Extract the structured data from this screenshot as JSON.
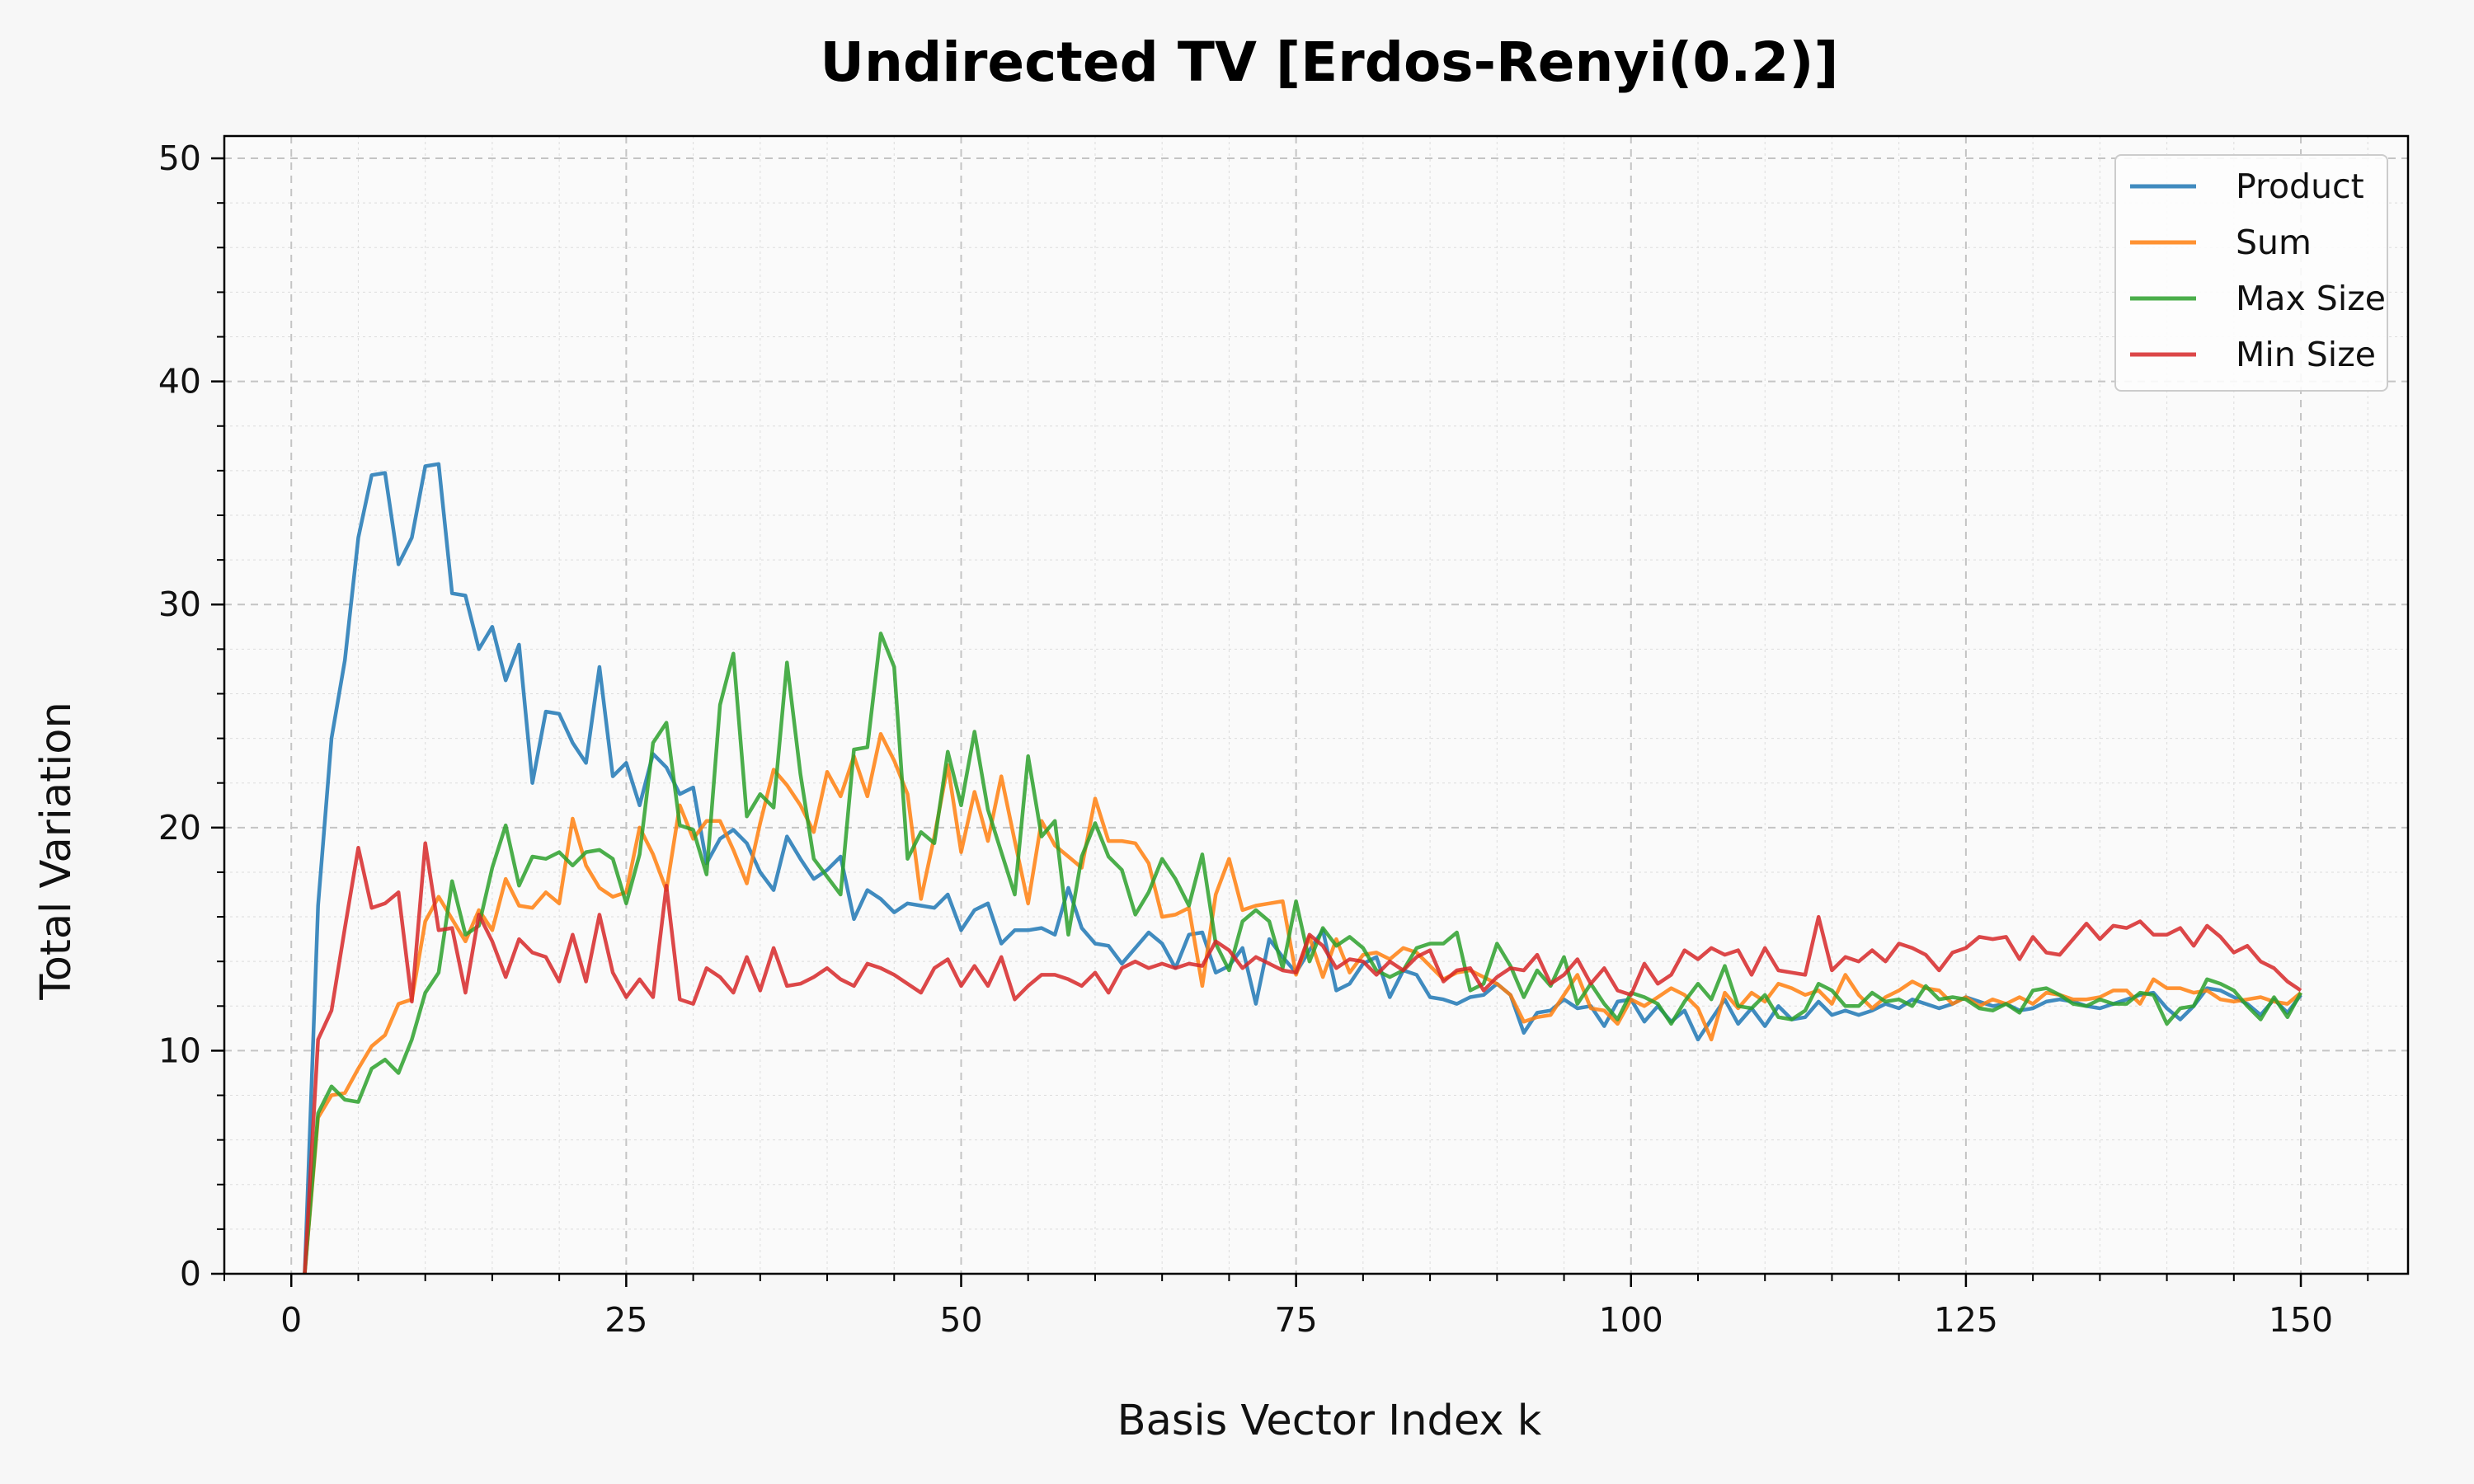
{
  "chart_data": {
    "type": "line",
    "title": "Undirected TV [Erdos-Renyi(0.2)]",
    "xlabel": "Basis Vector Index k",
    "ylabel": "Total Variation",
    "xlim": [
      -5,
      158
    ],
    "ylim": [
      0,
      51
    ],
    "xticks": [
      0,
      25,
      50,
      75,
      100,
      125,
      150
    ],
    "yticks": [
      0,
      10,
      20,
      30,
      40,
      50
    ],
    "grid": true,
    "legend_position": "top-right",
    "series": [
      {
        "name": "Product",
        "color": "#1f77b4",
        "x": [
          1,
          2,
          3,
          4,
          5,
          6,
          7,
          8,
          9,
          10,
          11,
          12,
          13,
          14,
          15,
          16,
          17,
          18,
          19,
          20,
          21,
          22,
          23,
          24,
          25,
          26,
          27,
          28,
          29,
          30,
          31,
          32,
          33,
          34,
          35,
          36,
          37,
          38,
          39,
          40,
          41,
          42,
          43,
          44,
          45,
          46,
          47,
          48,
          49,
          50,
          51,
          52,
          53,
          54,
          55,
          56,
          57,
          58,
          59,
          60,
          61,
          62,
          63,
          64,
          65,
          66,
          67,
          68,
          69,
          70,
          71,
          72,
          73,
          74,
          75,
          76,
          77,
          78,
          79,
          80,
          81,
          82,
          83,
          84,
          85,
          86,
          87,
          88,
          89,
          90,
          91,
          92,
          93,
          94,
          95,
          96,
          97,
          98,
          99,
          100,
          101,
          102,
          103,
          104,
          105,
          106,
          107,
          108,
          109,
          110,
          111,
          112,
          113,
          114,
          115,
          116,
          117,
          118,
          119,
          120,
          121,
          122,
          123,
          124,
          125,
          126,
          127,
          128,
          129,
          130,
          131,
          132,
          133,
          134,
          135,
          136,
          137,
          138,
          139,
          140,
          141,
          142,
          143,
          144,
          145,
          146,
          147,
          148,
          149,
          150
        ],
        "values": [
          0,
          16.5,
          24,
          27.5,
          33,
          35.8,
          35.9,
          31.8,
          33,
          36.2,
          36.3,
          30.5,
          30.4,
          28,
          29,
          26.6,
          28.2,
          22,
          25.2,
          25.1,
          23.8,
          22.9,
          27.2,
          22.3,
          22.9,
          21,
          23.3,
          22.7,
          21.5,
          21.8,
          18.4,
          19.5,
          19.9,
          19.3,
          18,
          17.2,
          19.6,
          18.6,
          17.7,
          18.1,
          18.7,
          15.9,
          17.2,
          16.8,
          16.2,
          16.6,
          16.5,
          16.4,
          17,
          15.4,
          16.3,
          16.6,
          14.8,
          15.4,
          15.4,
          15.5,
          15.2,
          17.3,
          15.5,
          14.8,
          14.7,
          13.9,
          14.6,
          15.3,
          14.8,
          13.7,
          15.2,
          15.3,
          13.5,
          13.8,
          14.6,
          12.1,
          15,
          14.2,
          13.5,
          14.5,
          15.4,
          12.7,
          13,
          13.9,
          14.2,
          12.4,
          13.6,
          13.4,
          12.4,
          12.3,
          12.1,
          12.4,
          12.5,
          13,
          12.5,
          10.8,
          11.7,
          11.8,
          12.3,
          11.9,
          12,
          11.1,
          12.2,
          12.3,
          11.3,
          12,
          11.3,
          11.8,
          10.5,
          11.4,
          12.3,
          11.2,
          11.9,
          11.1,
          12,
          11.4,
          11.5,
          12.2,
          11.6,
          11.8,
          11.6,
          11.8,
          12.1,
          11.9,
          12.3,
          12.1,
          11.9,
          12.1,
          12.4,
          12.2,
          12,
          12.1,
          11.8,
          11.9,
          12.2,
          12.3,
          12.2,
          12,
          11.9,
          12.1,
          12.3,
          12.5,
          12.6,
          11.9,
          11.4,
          12,
          12.8,
          12.7,
          12.4,
          12.1,
          11.6,
          12.3,
          11.7,
          12.5
        ]
      },
      {
        "name": "Sum",
        "color": "#ff7f0e",
        "x": [
          1,
          2,
          3,
          4,
          5,
          6,
          7,
          8,
          9,
          10,
          11,
          12,
          13,
          14,
          15,
          16,
          17,
          18,
          19,
          20,
          21,
          22,
          23,
          24,
          25,
          26,
          27,
          28,
          29,
          30,
          31,
          32,
          33,
          34,
          35,
          36,
          37,
          38,
          39,
          40,
          41,
          42,
          43,
          44,
          45,
          46,
          47,
          48,
          49,
          50,
          51,
          52,
          53,
          54,
          55,
          56,
          57,
          58,
          59,
          60,
          61,
          62,
          63,
          64,
          65,
          66,
          67,
          68,
          69,
          70,
          71,
          72,
          73,
          74,
          75,
          76,
          77,
          78,
          79,
          80,
          81,
          82,
          83,
          84,
          85,
          86,
          87,
          88,
          89,
          90,
          91,
          92,
          93,
          94,
          95,
          96,
          97,
          98,
          99,
          100,
          101,
          102,
          103,
          104,
          105,
          106,
          107,
          108,
          109,
          110,
          111,
          112,
          113,
          114,
          115,
          116,
          117,
          118,
          119,
          120,
          121,
          122,
          123,
          124,
          125,
          126,
          127,
          128,
          129,
          130,
          131,
          132,
          133,
          134,
          135,
          136,
          137,
          138,
          139,
          140,
          141,
          142,
          143,
          144,
          145,
          146,
          147,
          148,
          149,
          150
        ],
        "values": [
          0,
          7,
          8,
          8.1,
          9.2,
          10.2,
          10.7,
          12.1,
          12.3,
          15.8,
          16.9,
          15.9,
          14.9,
          16.3,
          15.4,
          17.7,
          16.5,
          16.4,
          17.1,
          16.6,
          20.4,
          18.3,
          17.3,
          16.9,
          17.1,
          20,
          18.8,
          17.2,
          21,
          19.5,
          20.3,
          20.3,
          19,
          17.5,
          20.2,
          22.6,
          21.9,
          21,
          19.8,
          22.5,
          21.4,
          23.2,
          21.4,
          24.2,
          23,
          21.5,
          16.8,
          19.6,
          22.8,
          18.9,
          21.6,
          19.4,
          22.3,
          19.4,
          16.6,
          20.3,
          19.2,
          18.7,
          18.2,
          21.3,
          19.4,
          19.4,
          19.3,
          18.4,
          16,
          16.1,
          16.4,
          12.9,
          17,
          18.6,
          16.3,
          16.5,
          16.6,
          16.7,
          13.4,
          15.1,
          13.3,
          15,
          13.5,
          14.3,
          14.4,
          14.1,
          14.6,
          14.4,
          13.8,
          13.2,
          13.5,
          13.6,
          13.3,
          13,
          12.5,
          11.3,
          11.5,
          11.6,
          12.5,
          13.4,
          11.9,
          11.8,
          11.2,
          12.3,
          12,
          12.4,
          12.8,
          12.5,
          11.9,
          10.5,
          12.6,
          11.9,
          12.6,
          12.2,
          13,
          12.8,
          12.5,
          12.7,
          12.1,
          13.4,
          12.5,
          11.9,
          12.4,
          12.7,
          13.1,
          12.8,
          12.7,
          12.1,
          12.4,
          12,
          12.3,
          12.1,
          12.4,
          12.1,
          12.6,
          12.5,
          12.3,
          12.3,
          12.4,
          12.7,
          12.7,
          12.1,
          13.2,
          12.8,
          12.8,
          12.6,
          12.7,
          12.3,
          12.2,
          12.3,
          12.4,
          12.2,
          12.1,
          12.6
        ]
      },
      {
        "name": "Max Size",
        "color": "#2ca02c",
        "x": [
          1,
          2,
          3,
          4,
          5,
          6,
          7,
          8,
          9,
          10,
          11,
          12,
          13,
          14,
          15,
          16,
          17,
          18,
          19,
          20,
          21,
          22,
          23,
          24,
          25,
          26,
          27,
          28,
          29,
          30,
          31,
          32,
          33,
          34,
          35,
          36,
          37,
          38,
          39,
          40,
          41,
          42,
          43,
          44,
          45,
          46,
          47,
          48,
          49,
          50,
          51,
          52,
          53,
          54,
          55,
          56,
          57,
          58,
          59,
          60,
          61,
          62,
          63,
          64,
          65,
          66,
          67,
          68,
          69,
          70,
          71,
          72,
          73,
          74,
          75,
          76,
          77,
          78,
          79,
          80,
          81,
          82,
          83,
          84,
          85,
          86,
          87,
          88,
          89,
          90,
          91,
          92,
          93,
          94,
          95,
          96,
          97,
          98,
          99,
          100,
          101,
          102,
          103,
          104,
          105,
          106,
          107,
          108,
          109,
          110,
          111,
          112,
          113,
          114,
          115,
          116,
          117,
          118,
          119,
          120,
          121,
          122,
          123,
          124,
          125,
          126,
          127,
          128,
          129,
          130,
          131,
          132,
          133,
          134,
          135,
          136,
          137,
          138,
          139,
          140,
          141,
          142,
          143,
          144,
          145,
          146,
          147,
          148,
          149,
          150
        ],
        "values": [
          0,
          7.2,
          8.4,
          7.8,
          7.7,
          9.2,
          9.6,
          9,
          10.5,
          12.6,
          13.5,
          17.6,
          15.2,
          15.6,
          18.2,
          20.1,
          17.4,
          18.7,
          18.6,
          18.9,
          18.3,
          18.9,
          19,
          18.6,
          16.6,
          18.8,
          23.8,
          24.7,
          20.1,
          19.9,
          17.9,
          25.5,
          27.8,
          20.5,
          21.5,
          20.9,
          27.4,
          22.4,
          18.6,
          17.8,
          17,
          23.5,
          23.6,
          28.7,
          27.2,
          18.6,
          19.8,
          19.3,
          23.4,
          21,
          24.3,
          20.8,
          18.9,
          17,
          23.2,
          19.6,
          20.3,
          15.2,
          18.7,
          20.2,
          18.7,
          18.1,
          16.1,
          17.1,
          18.6,
          17.7,
          16.5,
          18.8,
          14.8,
          13.6,
          15.8,
          16.3,
          15.8,
          13.7,
          16.7,
          14,
          15.5,
          14.7,
          15.1,
          14.6,
          13.6,
          13.3,
          13.6,
          14.6,
          14.8,
          14.8,
          15.3,
          12.7,
          13,
          14.8,
          13.8,
          12.4,
          13.6,
          12.9,
          14.2,
          12.1,
          13,
          12.1,
          11.4,
          12.6,
          12.4,
          12.1,
          11.2,
          12.2,
          13,
          12.3,
          13.8,
          12,
          11.9,
          12.5,
          11.5,
          11.4,
          11.8,
          13,
          12.7,
          12,
          12,
          12.6,
          12.2,
          12.3,
          12,
          12.9,
          12.3,
          12.4,
          12.3,
          11.9,
          11.8,
          12.1,
          11.7,
          12.7,
          12.8,
          12.5,
          12.1,
          12,
          12.3,
          12.1,
          12.1,
          12.6,
          12.5,
          11.2,
          11.9,
          12,
          13.2,
          13,
          12.7,
          12,
          11.4,
          12.4,
          11.5,
          12.6
        ]
      },
      {
        "name": "Min Size",
        "color": "#d62728",
        "x": [
          1,
          2,
          3,
          4,
          5,
          6,
          7,
          8,
          9,
          10,
          11,
          12,
          13,
          14,
          15,
          16,
          17,
          18,
          19,
          20,
          21,
          22,
          23,
          24,
          25,
          26,
          27,
          28,
          29,
          30,
          31,
          32,
          33,
          34,
          35,
          36,
          37,
          38,
          39,
          40,
          41,
          42,
          43,
          44,
          45,
          46,
          47,
          48,
          49,
          50,
          51,
          52,
          53,
          54,
          55,
          56,
          57,
          58,
          59,
          60,
          61,
          62,
          63,
          64,
          65,
          66,
          67,
          68,
          69,
          70,
          71,
          72,
          73,
          74,
          75,
          76,
          77,
          78,
          79,
          80,
          81,
          82,
          83,
          84,
          85,
          86,
          87,
          88,
          89,
          90,
          91,
          92,
          93,
          94,
          95,
          96,
          97,
          98,
          99,
          100,
          101,
          102,
          103,
          104,
          105,
          106,
          107,
          108,
          109,
          110,
          111,
          112,
          113,
          114,
          115,
          116,
          117,
          118,
          119,
          120,
          121,
          122,
          123,
          124,
          125,
          126,
          127,
          128,
          129,
          130,
          131,
          132,
          133,
          134,
          135,
          136,
          137,
          138,
          139,
          140,
          141,
          142,
          143,
          144,
          145,
          146,
          147,
          148,
          149,
          150
        ],
        "values": [
          0,
          10.5,
          11.8,
          15.5,
          19.1,
          16.4,
          16.6,
          17.1,
          12.2,
          19.3,
          15.4,
          15.5,
          12.6,
          16.1,
          14.9,
          13.3,
          15,
          14.4,
          14.2,
          13.1,
          15.2,
          13.1,
          16.1,
          13.5,
          12.4,
          13.2,
          12.4,
          17.4,
          12.3,
          12.1,
          13.7,
          13.3,
          12.6,
          14.2,
          12.7,
          14.6,
          12.9,
          13,
          13.3,
          13.7,
          13.2,
          12.9,
          13.9,
          13.7,
          13.4,
          13,
          12.6,
          13.7,
          14.1,
          12.9,
          13.8,
          12.9,
          14.2,
          12.3,
          12.9,
          13.4,
          13.4,
          13.2,
          12.9,
          13.5,
          12.6,
          13.7,
          14,
          13.7,
          13.9,
          13.7,
          13.9,
          13.8,
          14.9,
          14.5,
          13.7,
          14.2,
          13.9,
          13.6,
          13.5,
          15.2,
          14.7,
          13.7,
          14.1,
          14,
          13.4,
          14,
          13.6,
          14.2,
          14.5,
          13.1,
          13.6,
          13.7,
          12.7,
          13.3,
          13.7,
          13.6,
          14.3,
          13,
          13.4,
          14.1,
          13,
          13.7,
          12.7,
          12.5,
          13.9,
          13,
          13.4,
          14.5,
          14.1,
          14.6,
          14.3,
          14.5,
          13.4,
          14.6,
          13.6,
          13.5,
          13.4,
          16,
          13.6,
          14.2,
          14,
          14.5,
          14,
          14.8,
          14.6,
          14.3,
          13.6,
          14.4,
          14.6,
          15.1,
          15,
          15.1,
          14.1,
          15.1,
          14.4,
          14.3,
          15,
          15.7,
          15,
          15.6,
          15.5,
          15.8,
          15.2,
          15.2,
          15.5,
          14.7,
          15.6,
          15.1,
          14.4,
          14.7,
          14,
          13.7,
          13.1,
          12.7
        ]
      }
    ]
  }
}
